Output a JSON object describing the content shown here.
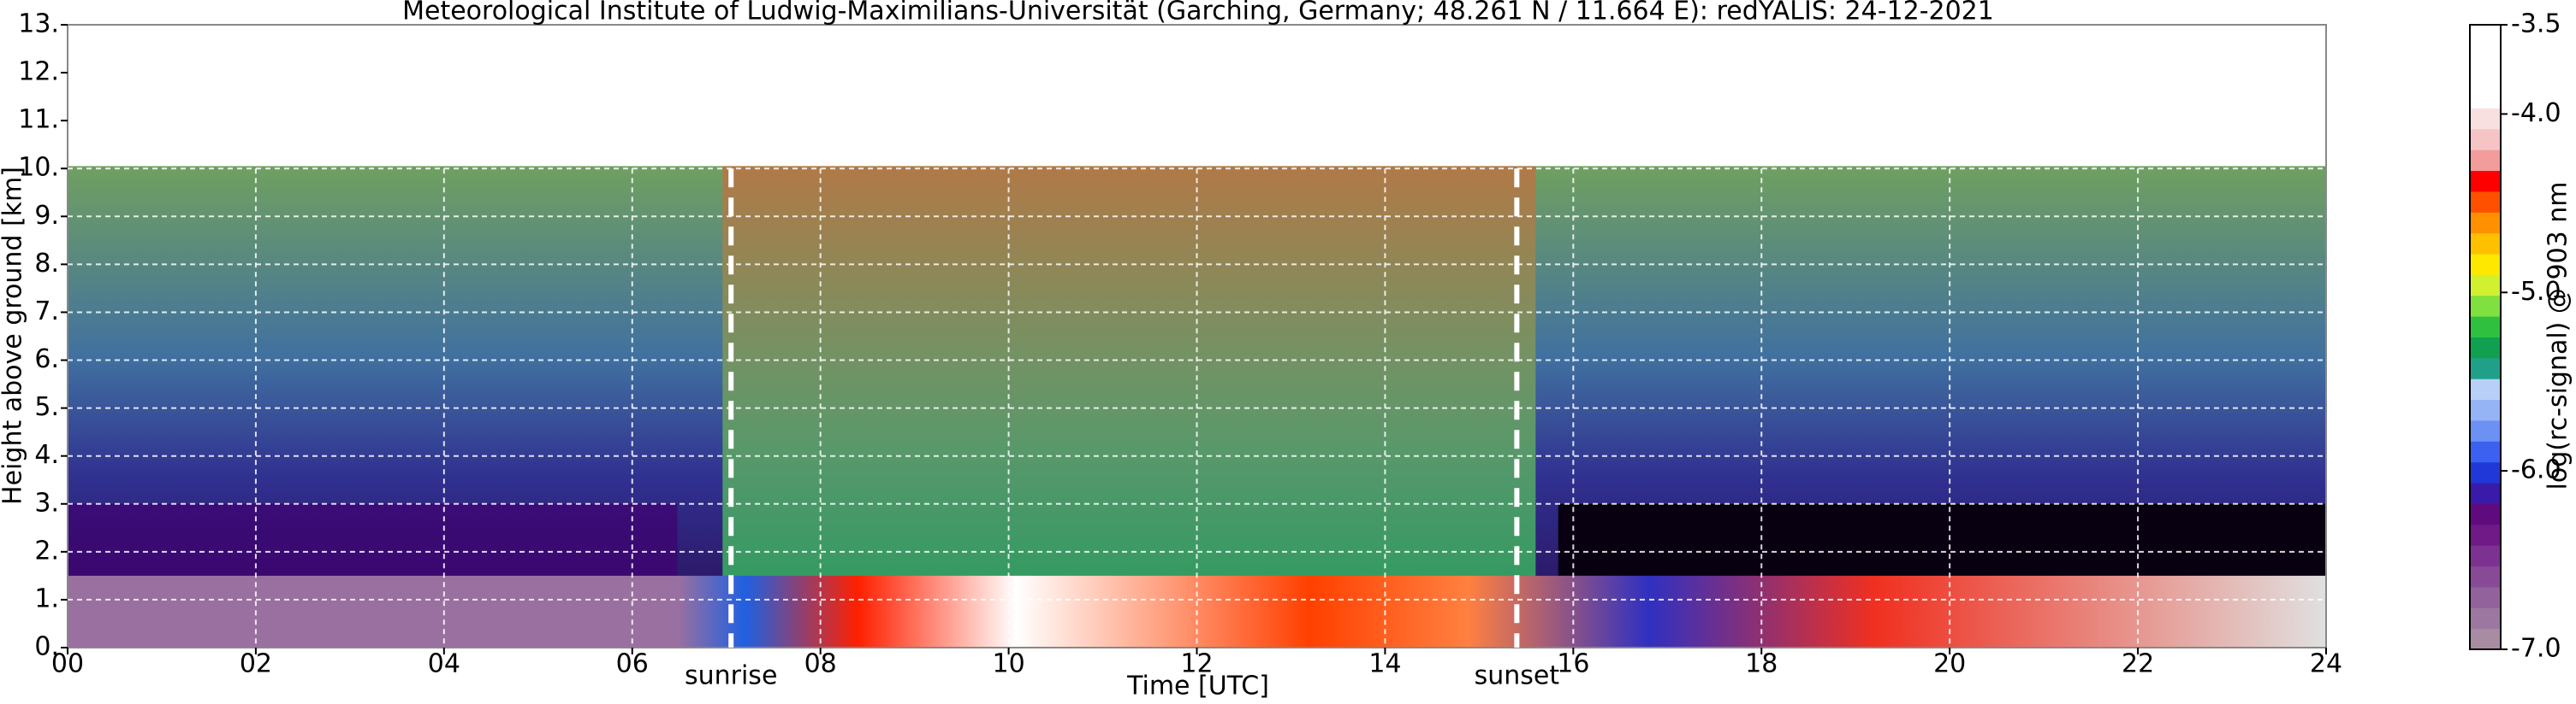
{
  "chart_data": {
    "type": "heatmap",
    "title": "Meteorological Institute of Ludwig-Maximilians-Universität (Garching, Germany; 48.261 N / 11.664 E):    redYALIS: 24-12-2021",
    "xlabel": "Time [UTC]",
    "ylabel": "Height above ground [km]",
    "xlim": [
      0,
      24
    ],
    "ylim": [
      0,
      13
    ],
    "xticks": [
      {
        "value": 0,
        "label": "00"
      },
      {
        "value": 2,
        "label": "02"
      },
      {
        "value": 4,
        "label": "04"
      },
      {
        "value": 6,
        "label": "06"
      },
      {
        "value": 8,
        "label": "08"
      },
      10,
      12,
      14,
      16,
      18,
      20,
      22,
      24
    ],
    "yticks": [
      {
        "value": 0,
        "label": "0."
      },
      {
        "value": 1,
        "label": "1."
      },
      {
        "value": 2,
        "label": "2."
      },
      {
        "value": 3,
        "label": "3."
      },
      {
        "value": 4,
        "label": "4."
      },
      {
        "value": 5,
        "label": "5."
      },
      {
        "value": 6,
        "label": "6."
      },
      {
        "value": 7,
        "label": "7."
      },
      {
        "value": 8,
        "label": "8."
      },
      {
        "value": 9,
        "label": "9."
      },
      {
        "value": 10,
        "label": "10."
      },
      {
        "value": 11,
        "label": "11."
      },
      {
        "value": 12,
        "label": "12."
      },
      {
        "value": 13,
        "label": "13."
      }
    ],
    "grid": true,
    "annotations": [
      {
        "text": "sunrise",
        "x": 7.05
      },
      {
        "text": "sunset",
        "x": 15.4
      }
    ],
    "colorbar": {
      "label": "log(rc-signal) @ 903 nm",
      "lim": [
        -7.0,
        -3.5
      ],
      "ticks": [
        {
          "value": -3.5,
          "label": "-3.5"
        },
        {
          "value": -4.0,
          "label": "-4.0"
        },
        {
          "value": -5.0,
          "label": "-5.0"
        },
        {
          "value": -6.0,
          "label": "-6.0"
        },
        {
          "value": -7.0,
          "label": "-7.0"
        }
      ],
      "colors": [
        "#a88ca2",
        "#9c78a0",
        "#92629c",
        "#884a96",
        "#7c3290",
        "#701a88",
        "#600a80",
        "#3a1aa8",
        "#2038d8",
        "#3c60f0",
        "#6c90f4",
        "#94b4f6",
        "#b8d0f8",
        "#20a088",
        "#10a050",
        "#30c040",
        "#80e040",
        "#d0f030",
        "#ffe800",
        "#ffc000",
        "#ff9000",
        "#ff5000",
        "#ff0000",
        "#f29c9c",
        "#f6c4c4",
        "#f8e0e0",
        "#ffffff",
        "#ffffff",
        "#ffffff",
        "#ffffff"
      ]
    }
  }
}
